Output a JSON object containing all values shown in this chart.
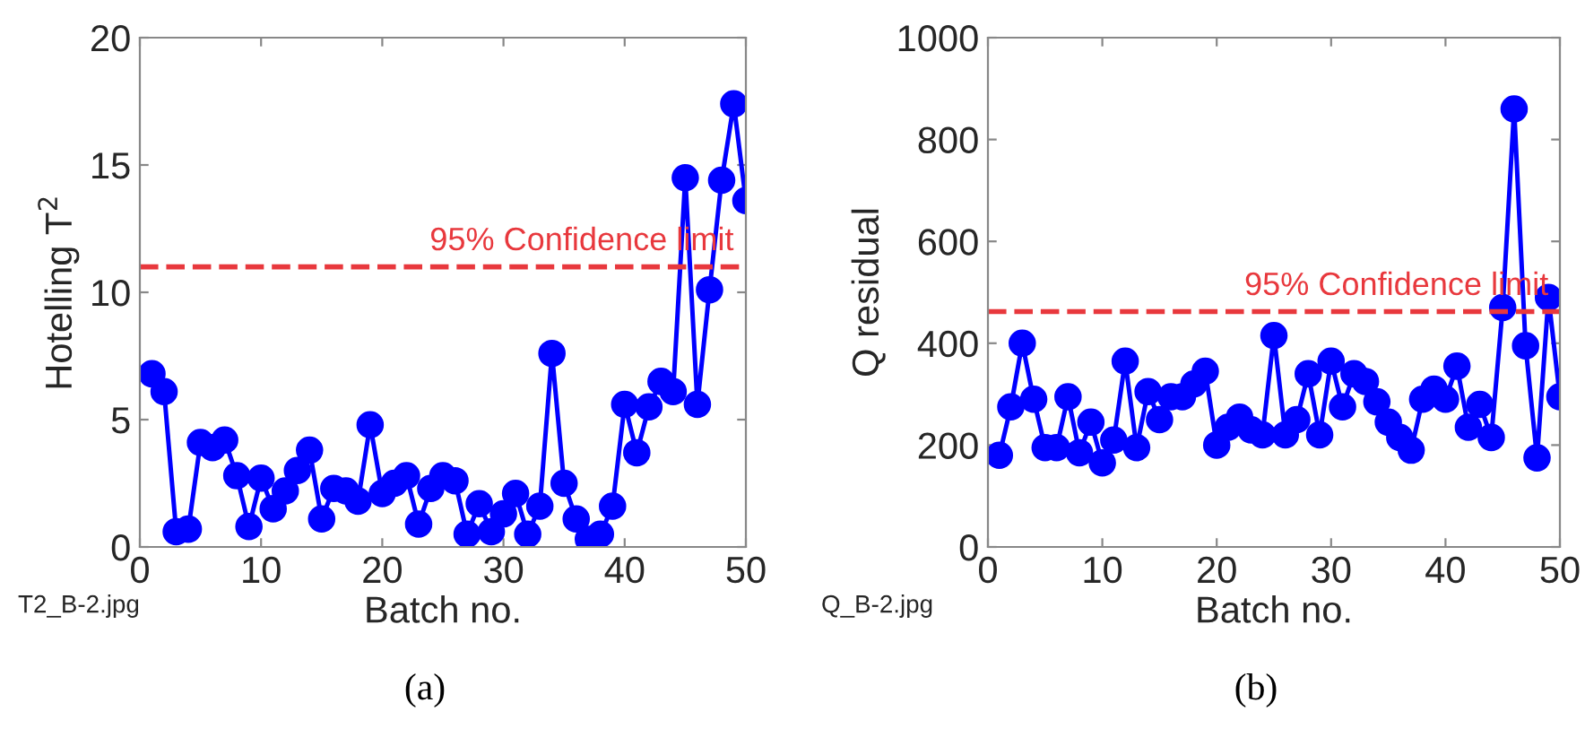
{
  "chart_data": [
    {
      "type": "line",
      "xlabel": "Batch no.",
      "ylabel": "Hotelling T$^{2}$",
      "x": [
        1,
        2,
        3,
        4,
        5,
        6,
        7,
        8,
        9,
        10,
        11,
        12,
        13,
        14,
        15,
        16,
        17,
        18,
        19,
        20,
        21,
        22,
        23,
        24,
        25,
        26,
        27,
        28,
        29,
        30,
        31,
        32,
        33,
        34,
        35,
        36,
        37,
        38,
        39,
        40,
        41,
        42,
        43,
        44,
        45,
        46,
        47,
        48,
        49,
        50
      ],
      "series": [
        {
          "color": "#0000ff",
          "values": [
            6.8,
            6.1,
            0.6,
            0.7,
            4.1,
            3.9,
            4.2,
            2.8,
            0.8,
            2.7,
            1.5,
            2.2,
            3.0,
            3.8,
            1.1,
            2.3,
            2.2,
            1.8,
            4.8,
            2.1,
            2.5,
            2.8,
            0.9,
            2.3,
            2.8,
            2.6,
            0.5,
            1.7,
            0.6,
            1.3,
            2.1,
            0.5,
            1.6,
            7.6,
            2.5,
            1.1,
            0.3,
            0.5,
            1.6,
            5.6,
            3.7,
            5.5,
            6.5,
            6.1,
            14.5,
            5.6,
            10.1,
            14.4,
            17.4,
            13.6
          ]
        }
      ],
      "xlim": [
        0,
        50
      ],
      "xticks": [
        0,
        10,
        20,
        30,
        40,
        50
      ],
      "ylim": [
        0,
        20
      ],
      "yticks": [
        0,
        5,
        10,
        15,
        20
      ],
      "ref_lines": [
        {
          "axis": "y",
          "value": 11,
          "label": "95% Confidence limit",
          "color": "#e8383d",
          "line_style": "dashed"
        }
      ],
      "marker": "circle",
      "line_style": "solid",
      "grid": false,
      "legend": false,
      "annotations": [
        "T2_B-2.jpg",
        "(a)"
      ]
    },
    {
      "type": "line",
      "xlabel": "Batch no.",
      "ylabel": "Q residual",
      "x": [
        1,
        2,
        3,
        4,
        5,
        6,
        7,
        8,
        9,
        10,
        11,
        12,
        13,
        14,
        15,
        16,
        17,
        18,
        19,
        20,
        21,
        22,
        23,
        24,
        25,
        26,
        27,
        28,
        29,
        30,
        31,
        32,
        33,
        34,
        35,
        36,
        37,
        38,
        39,
        40,
        41,
        42,
        43,
        44,
        45,
        46,
        47,
        48,
        49,
        50
      ],
      "series": [
        {
          "color": "#0000ff",
          "values": [
            180,
            275,
            400,
            290,
            195,
            195,
            295,
            185,
            245,
            165,
            210,
            365,
            195,
            305,
            250,
            295,
            295,
            320,
            345,
            200,
            235,
            255,
            230,
            220,
            415,
            220,
            250,
            340,
            220,
            365,
            275,
            340,
            325,
            285,
            245,
            215,
            190,
            290,
            310,
            290,
            355,
            235,
            280,
            215,
            470,
            860,
            395,
            175,
            490,
            295
          ]
        }
      ],
      "xlim": [
        0,
        50
      ],
      "xticks": [
        0,
        10,
        20,
        30,
        40,
        50
      ],
      "ylim": [
        0,
        1000
      ],
      "yticks": [
        0,
        200,
        400,
        600,
        800,
        1000
      ],
      "ref_lines": [
        {
          "axis": "y",
          "value": 462,
          "label": "95% Confidence limit",
          "color": "#e8383d",
          "line_style": "dashed"
        }
      ],
      "marker": "circle",
      "line_style": "solid",
      "grid": false,
      "legend": false,
      "annotations": [
        "Q_B-2.jpg",
        "(b)"
      ]
    }
  ]
}
